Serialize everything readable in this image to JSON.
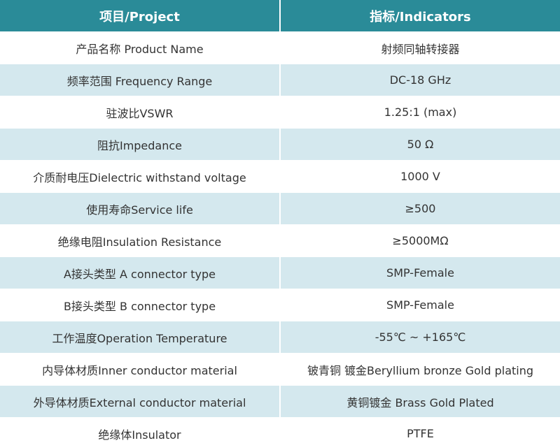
{
  "table": {
    "header": [
      "项目/Project",
      "指标/Indicators"
    ],
    "rows": [
      [
        "产品名称 Product Name",
        "射频同轴转接器"
      ],
      [
        "频率范围 Frequency Range",
        "DC-18 GHz"
      ],
      [
        "驻波比VSWR",
        "1.25:1 (max)"
      ],
      [
        "阻抗Impedance",
        "50 Ω"
      ],
      [
        "介质耐电压Dielectric withstand voltage",
        "1000 V"
      ],
      [
        "使用寿命Service life",
        "≥500"
      ],
      [
        "绝缘电阻Insulation Resistance",
        "≥5000MΩ"
      ],
      [
        "A接头类型 A connector type",
        "SMP-Female"
      ],
      [
        "B接头类型 B connector type",
        "SMP-Female"
      ],
      [
        "工作温度Operation Temperature",
        "-55℃ ~ +165℃"
      ],
      [
        "内导体材质Inner conductor material",
        "铍青铜 镀金Beryllium bronze Gold plating"
      ],
      [
        "外导体材质External conductor material",
        "黄铜镀金 Brass Gold Plated"
      ],
      [
        "绝缘体Insulator",
        "PTFE"
      ]
    ]
  }
}
